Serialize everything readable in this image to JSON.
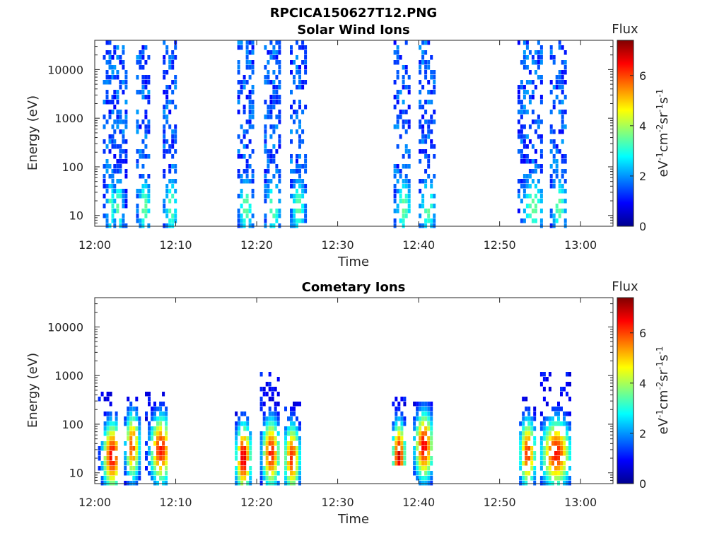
{
  "figure_title": "RPCICA150627T12.PNG",
  "chart_data": [
    {
      "type": "heatmap",
      "title": "Solar Wind Ions",
      "xlabel": "Time",
      "ylabel": "Energy (eV)",
      "x_range": [
        "12:00",
        "13:04"
      ],
      "x_ticks": [
        "12:00",
        "12:10",
        "12:20",
        "12:30",
        "12:40",
        "12:50",
        "13:00"
      ],
      "y_scale": "log",
      "y_range": [
        6,
        40000
      ],
      "y_ticks": [
        "10",
        "100",
        "1000",
        "10000"
      ],
      "colorbar": {
        "label": "Flux",
        "unit": "eV-1cm-2sr-1s-1",
        "range": [
          0,
          7.4
        ],
        "ticks": [
          "0",
          "2",
          "4",
          "6"
        ],
        "colormap": "jet"
      },
      "bursts": [
        {
          "start_min": 1.0,
          "end_min": 2.2,
          "center_min": 1.8,
          "emin": 6,
          "emax": 40000,
          "peak_flux": 3.6,
          "peak_energy": 15
        },
        {
          "start_min": 2.3,
          "end_min": 3.7,
          "center_min": 2.8,
          "emin": 6,
          "emax": 30000,
          "peak_flux": 3.6,
          "peak_energy": 15
        },
        {
          "start_min": 5.1,
          "end_min": 6.8,
          "center_min": 6.0,
          "emin": 6,
          "emax": 30000,
          "peak_flux": 3.6,
          "peak_energy": 15
        },
        {
          "start_min": 8.4,
          "end_min": 10.1,
          "center_min": 9.3,
          "emin": 6,
          "emax": 40000,
          "peak_flux": 3.6,
          "peak_energy": 15
        },
        {
          "start_min": 17.6,
          "end_min": 19.6,
          "center_min": 18.5,
          "emin": 6,
          "emax": 40000,
          "peak_flux": 3.6,
          "peak_energy": 15
        },
        {
          "start_min": 20.9,
          "end_min": 22.9,
          "center_min": 21.9,
          "emin": 6,
          "emax": 40000,
          "peak_flux": 3.6,
          "peak_energy": 15
        },
        {
          "start_min": 24.1,
          "end_min": 26.0,
          "center_min": 25.0,
          "emin": 6,
          "emax": 40000,
          "peak_flux": 3.6,
          "peak_energy": 15
        },
        {
          "start_min": 36.9,
          "end_min": 39.0,
          "center_min": 38.0,
          "emin": 6,
          "emax": 40000,
          "peak_flux": 3.6,
          "peak_energy": 15
        },
        {
          "start_min": 40.0,
          "end_min": 42.0,
          "center_min": 41.0,
          "emin": 6,
          "emax": 40000,
          "peak_flux": 3.6,
          "peak_energy": 15
        },
        {
          "start_min": 52.2,
          "end_min": 55.2,
          "center_min": 54.0,
          "emin": 6,
          "emax": 40000,
          "peak_flux": 3.6,
          "peak_energy": 15
        },
        {
          "start_min": 56.2,
          "end_min": 58.2,
          "center_min": 57.2,
          "emin": 6,
          "emax": 40000,
          "peak_flux": 3.6,
          "peak_energy": 15
        }
      ]
    },
    {
      "type": "heatmap",
      "title": "Cometary Ions",
      "xlabel": "Time",
      "ylabel": "Energy (eV)",
      "x_range": [
        "12:00",
        "13:04"
      ],
      "x_ticks": [
        "12:00",
        "12:10",
        "12:20",
        "12:30",
        "12:40",
        "12:50",
        "13:00"
      ],
      "y_scale": "log",
      "y_range": [
        6,
        40000
      ],
      "y_ticks": [
        "10",
        "100",
        "1000",
        "10000"
      ],
      "colorbar": {
        "label": "Flux",
        "unit": "eV-1cm-2sr-1s-1",
        "range": [
          0,
          7.4
        ],
        "ticks": [
          "0",
          "2",
          "4",
          "6"
        ],
        "colormap": "jet"
      },
      "bursts": [
        {
          "start_min": 0.4,
          "end_min": 2.8,
          "center_min": 2.0,
          "emin": 6,
          "emax": 500,
          "peak_flux": 6.6,
          "peak_energy": 22
        },
        {
          "start_min": 3.6,
          "end_min": 5.4,
          "center_min": 4.5,
          "emin": 6,
          "emax": 400,
          "peak_flux": 6.0,
          "peak_energy": 35
        },
        {
          "start_min": 6.2,
          "end_min": 8.9,
          "center_min": 8.0,
          "emin": 6,
          "emax": 450,
          "peak_flux": 6.4,
          "peak_energy": 30
        },
        {
          "start_min": 17.3,
          "end_min": 19.2,
          "center_min": 18.2,
          "emin": 6,
          "emax": 200,
          "peak_flux": 6.8,
          "peak_energy": 20
        },
        {
          "start_min": 20.4,
          "end_min": 22.6,
          "center_min": 21.6,
          "emin": 6,
          "emax": 1300,
          "peak_flux": 6.4,
          "peak_energy": 25
        },
        {
          "start_min": 23.4,
          "end_min": 25.4,
          "center_min": 24.2,
          "emin": 6,
          "emax": 300,
          "peak_flux": 6.2,
          "peak_energy": 20
        },
        {
          "start_min": 36.7,
          "end_min": 38.3,
          "center_min": 37.4,
          "emin": 15,
          "emax": 350,
          "peak_flux": 6.8,
          "peak_energy": 22
        },
        {
          "start_min": 39.3,
          "end_min": 41.6,
          "center_min": 40.5,
          "emin": 6,
          "emax": 300,
          "peak_flux": 6.6,
          "peak_energy": 35
        },
        {
          "start_min": 52.4,
          "end_min": 54.4,
          "center_min": 53.3,
          "emin": 6,
          "emax": 400,
          "peak_flux": 6.2,
          "peak_energy": 25
        },
        {
          "start_min": 55.0,
          "end_min": 58.6,
          "center_min": 56.8,
          "emin": 6,
          "emax": 1300,
          "peak_flux": 6.4,
          "peak_energy": 25
        }
      ]
    }
  ]
}
